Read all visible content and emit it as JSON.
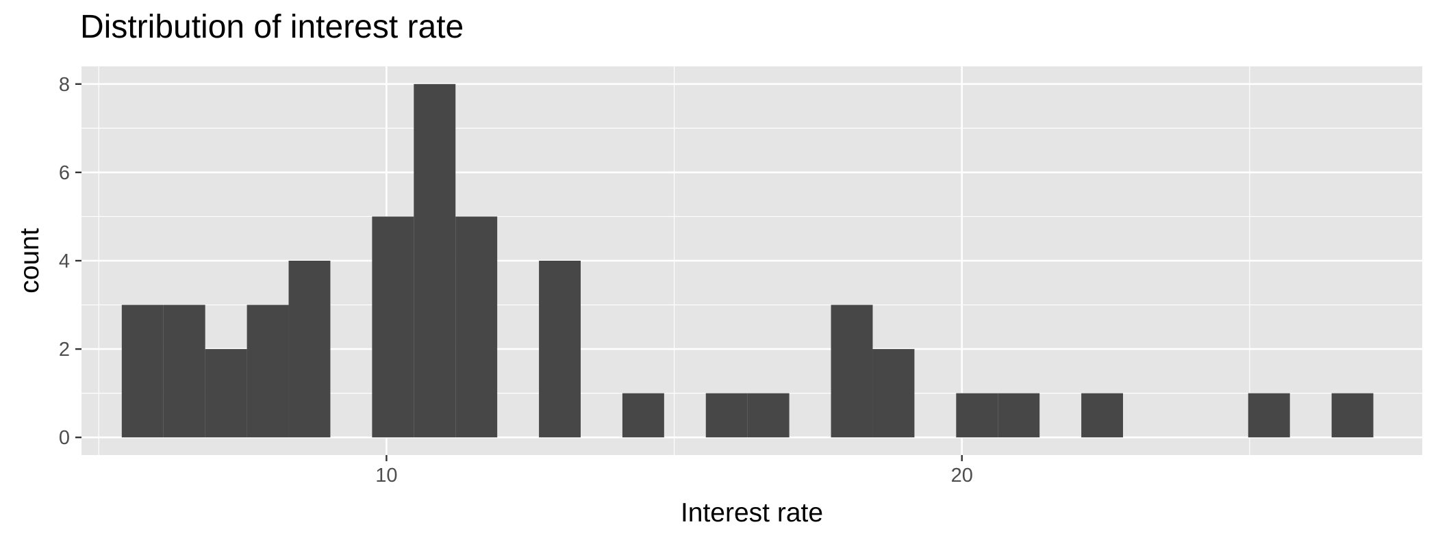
{
  "chart_data": {
    "type": "bar",
    "subtype": "histogram",
    "title": "Distribution of interest rate",
    "xlabel": "Interest rate",
    "ylabel": "count",
    "xlim": [
      4.7,
      28.0
    ],
    "ylim": [
      -0.4,
      8.4
    ],
    "x_ticks": [
      10,
      20
    ],
    "y_ticks": [
      0,
      2,
      4,
      6,
      8
    ],
    "grid": true,
    "legend": "none",
    "bin_width": 0.725,
    "bins": [
      {
        "x0": 5.4,
        "x1": 6.125,
        "count": 3
      },
      {
        "x0": 6.125,
        "x1": 6.85,
        "count": 3
      },
      {
        "x0": 6.85,
        "x1": 7.575,
        "count": 2
      },
      {
        "x0": 7.575,
        "x1": 8.3,
        "count": 3
      },
      {
        "x0": 8.3,
        "x1": 9.025,
        "count": 4
      },
      {
        "x0": 9.025,
        "x1": 9.75,
        "count": 0
      },
      {
        "x0": 9.75,
        "x1": 10.475,
        "count": 5
      },
      {
        "x0": 10.475,
        "x1": 11.2,
        "count": 8
      },
      {
        "x0": 11.2,
        "x1": 11.925,
        "count": 5
      },
      {
        "x0": 11.925,
        "x1": 12.65,
        "count": 0
      },
      {
        "x0": 12.65,
        "x1": 13.375,
        "count": 4
      },
      {
        "x0": 13.375,
        "x1": 14.1,
        "count": 0
      },
      {
        "x0": 14.1,
        "x1": 14.825,
        "count": 1
      },
      {
        "x0": 14.825,
        "x1": 15.55,
        "count": 0
      },
      {
        "x0": 15.55,
        "x1": 16.275,
        "count": 1
      },
      {
        "x0": 16.275,
        "x1": 17.0,
        "count": 1
      },
      {
        "x0": 17.0,
        "x1": 17.725,
        "count": 0
      },
      {
        "x0": 17.725,
        "x1": 18.45,
        "count": 3
      },
      {
        "x0": 18.45,
        "x1": 19.175,
        "count": 2
      },
      {
        "x0": 19.175,
        "x1": 19.9,
        "count": 0
      },
      {
        "x0": 19.9,
        "x1": 20.625,
        "count": 1
      },
      {
        "x0": 20.625,
        "x1": 21.35,
        "count": 1
      },
      {
        "x0": 21.35,
        "x1": 22.075,
        "count": 0
      },
      {
        "x0": 22.075,
        "x1": 22.8,
        "count": 1
      },
      {
        "x0": 22.8,
        "x1": 23.525,
        "count": 0
      },
      {
        "x0": 23.525,
        "x1": 24.25,
        "count": 0
      },
      {
        "x0": 24.25,
        "x1": 24.975,
        "count": 0
      },
      {
        "x0": 24.975,
        "x1": 25.7,
        "count": 1
      },
      {
        "x0": 25.7,
        "x1": 26.425,
        "count": 0
      },
      {
        "x0": 26.425,
        "x1": 27.15,
        "count": 1
      }
    ],
    "colors": {
      "bar": "#474747",
      "panel": "#e5e5e5",
      "grid": "#ffffff",
      "tick_text": "#4d4d4d"
    }
  }
}
